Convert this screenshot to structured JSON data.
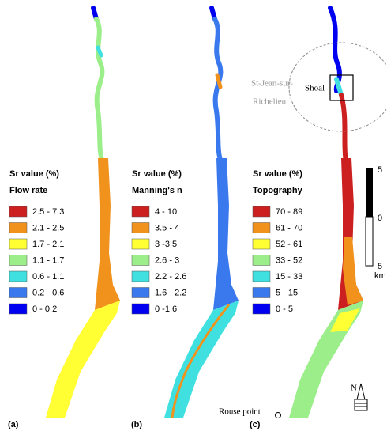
{
  "panels": [
    {
      "label": "(a)",
      "legend_title": "Sr value (%)",
      "legend_subtitle": "Flow rate",
      "legend_items": [
        {
          "label": "2.5 - 7.3",
          "color": "#cc1f1f"
        },
        {
          "label": "2.1 - 2.5",
          "color": "#f0921c"
        },
        {
          "label": "1.7 - 2.1",
          "color": "#ffff33"
        },
        {
          "label": "1.1 - 1.7",
          "color": "#9cee8a"
        },
        {
          "label": "0.6 - 1.1",
          "color": "#40e0e0"
        },
        {
          "label": "0.2 - 0.6",
          "color": "#3a78ee"
        },
        {
          "label": "0 - 0.2",
          "color": "#0000f0"
        }
      ]
    },
    {
      "label": "(b)",
      "legend_title": "Sr value (%)",
      "legend_subtitle": "Manning's n",
      "legend_items": [
        {
          "label": "4 - 10",
          "color": "#cc1f1f"
        },
        {
          "label": "3.5 - 4",
          "color": "#f0921c"
        },
        {
          "label": "3 -3.5",
          "color": "#ffff33"
        },
        {
          "label": "2.6 - 3",
          "color": "#9cee8a"
        },
        {
          "label": "2.2 - 2.6",
          "color": "#40e0e0"
        },
        {
          "label": "1.6 - 2.2",
          "color": "#3a78ee"
        },
        {
          "label": "0 -1.6",
          "color": "#0000f0"
        }
      ]
    },
    {
      "label": "(c)",
      "legend_title": "Sr value (%)",
      "legend_subtitle": "Topography",
      "legend_items": [
        {
          "label": "70 - 89",
          "color": "#cc1f1f"
        },
        {
          "label": "61 - 70",
          "color": "#f0921c"
        },
        {
          "label": "52 - 61",
          "color": "#ffff33"
        },
        {
          "label": "33 - 52",
          "color": "#9cee8a"
        },
        {
          "label": "15 - 33",
          "color": "#40e0e0"
        },
        {
          "label": "5 - 15",
          "color": "#3a78ee"
        },
        {
          "label": "0 - 5",
          "color": "#0000f0"
        }
      ]
    }
  ],
  "scale_bar": {
    "labels": [
      "5",
      "0",
      "5"
    ],
    "unit": "km"
  },
  "annotations": {
    "place": [
      "St-Jean-sur-",
      "Richelieu"
    ],
    "shoal": "Shoal",
    "rouse_point": "Rouse point",
    "north": "N"
  }
}
